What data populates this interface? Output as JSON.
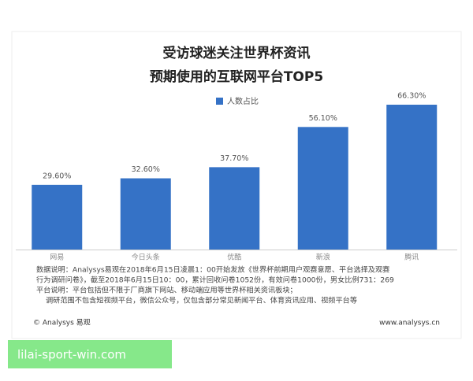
{
  "chart_data": {
    "type": "bar",
    "title": [
      "受访球迷关注世界杯资讯",
      "预期使用的互联网平台TOP5"
    ],
    "categories": [
      "网易",
      "今日头条",
      "优酷",
      "新浪",
      "腾讯"
    ],
    "series": [
      {
        "name": "人数占比",
        "color": "#3572c6",
        "values": [
          29.6,
          32.6,
          37.7,
          56.1,
          66.3
        ],
        "value_labels": [
          "29.60%",
          "32.60%",
          "37.70%",
          "56.10%",
          "66.30%"
        ]
      }
    ]
  },
  "notes": [
    "数据说明：Analysys易观在2018年6月15日凌晨1：00开始发放《世界杯前期用户观赛意愿、平台选择及观赛",
    "行为调研问卷》，截至2018年6月15日10：00，累计回收问卷1052份，有效问卷1000份，男女比例731：269",
    "平台说明：平台包括但不限于厂商旗下网站、移动端应用等世界杯相关资讯板块；",
    "调研范围不包含短视频平台，微信公众号，仅包含部分常见新闻平台、体育资讯应用、视频平台等"
  ],
  "footer": {
    "left": "© Analysys 易观",
    "right": "www.analysys.cn"
  },
  "banner": "lilai-sport-win.com"
}
